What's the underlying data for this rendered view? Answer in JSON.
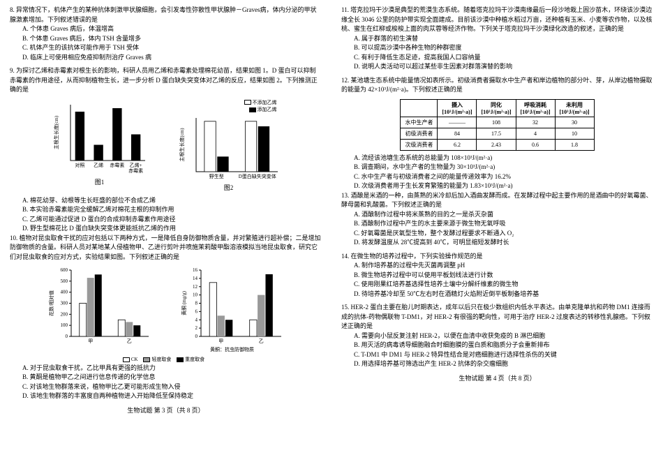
{
  "left": {
    "q8": {
      "stem": "8. 异常情况下，机体产生的某种抗体刺激甲状腺细胞，会引发毒性弥散性甲状腺肿－Graves病，体内分泌的甲状腺激素增加。下列叙述错误的是",
      "opts": [
        "A. 个体患 Graves 病后，体温增高",
        "B. 个体患 Graves 病后，体内 TSH 含量增多",
        "C. 机体产生的该抗体可能作用于 TSH 受体",
        "D. 临床上可使用相应免疫抑制剂治疗 Graves 病"
      ]
    },
    "q9": {
      "stem": "9. 为探讨乙烯和赤霉素对根生长的影响，科研人员用乙烯和赤霉素处理棉花幼苗，结果如图 1。D 蛋白可以抑制赤霉素的作用途径，从而抑制植物生长，进一步分析 D 蛋白缺失突变体对乙烯的反应，结果如图 2。下列推测正确的是",
      "opts": [
        "A. 棉花幼芽、幼根等生长旺盛的部位不合成乙烯",
        "B. 本实验赤霉素能完全缓解乙烯对棉花主根的抑制作用",
        "C. 乙烯可能通过促进 D 蛋白的合成抑制赤霉素作用途径",
        "D. 野生型棉花比 D 蛋白缺失突变体更能抵抗乙烯的作用"
      ]
    },
    "q10": {
      "stem": "10. 植物对昆虫取食干扰的应对包括以下两种方式，一是降低自身防御物质含量，并对繁殖进行超补偿；二是增加防御物质的含量。科研人员对某地某人侵植物甲、乙进行剪叶并喷施茉莉酸甲酯溶液模拟当地昆虫取食，研究它们对昆虫取食的应对方式，实验结果如图。下列叙述正确的是",
      "opts": [
        "A. 对于昆虫取食干扰，乙比甲具有更强的抵抗力",
        "B. 黄酮是植物甲乙之间进行信息传递的化学信息",
        "C. 对该地生物群落来说，植物甲比乙更可能形成生物入侵",
        "D. 该地生物群落的丰富度自两种植物进入开始降低至保持稳定"
      ]
    },
    "chart1": {
      "ylabel": "主根生长度(cm)",
      "xcats": [
        "对照",
        "乙烯",
        "赤霉素",
        "乙烯+\n赤霉素"
      ],
      "vals": [
        2.8,
        0.9,
        3.0,
        1.5
      ],
      "ymax": 3.2,
      "bar_color": "#000",
      "title": "图1"
    },
    "chart2": {
      "ylabel": "主根生长度(cm)",
      "xcats": [
        "野生型",
        "D蛋白缺失突变体"
      ],
      "legend": [
        "不添加乙烯",
        "添加乙烯"
      ],
      "series": [
        [
          3.0,
          3.0
        ],
        [
          0.9,
          2.7
        ]
      ],
      "ymax": 3.2,
      "title": "图2"
    },
    "chart3": {
      "ylabel": "花数/相对值",
      "xcats": [
        "甲",
        "乙"
      ],
      "legend": [
        "CK",
        "轻度取食",
        "重度取食"
      ],
      "series": [
        [
          300,
          150
        ],
        [
          530,
          130
        ],
        [
          560,
          100
        ]
      ],
      "ymax": 600,
      "yticks": [
        0,
        100,
        200,
        300,
        400,
        500,
        600
      ]
    },
    "chart4": {
      "ylabel": "黄酮 (mg/g)",
      "xcats": [
        "甲",
        "乙"
      ],
      "note": "黄酮：抗虫防御物质",
      "series": [
        [
          13,
          4
        ],
        [
          5,
          10
        ],
        [
          4,
          15
        ]
      ],
      "ymax": 16,
      "yticks": [
        0,
        2,
        4,
        6,
        8,
        10,
        12,
        14,
        16
      ]
    },
    "footer": "生物试题  第 3 页（共 8 页）"
  },
  "right": {
    "q11": {
      "stem": "11. 塔克拉玛干沙漠是典型的荒漠生态系统。随着塔克拉玛干沙漠南缘最后一段沙地栽上固沙苗木，环绕该沙漠边缘全长 3046 公里的防护带实现全面建成。目前该沙漠中种植水稻过万亩，还种植有玉米、小麦等农作物，以及核桃、蜜生在红柳或梭梭上面的肉苁蓉等经济作物。下列关于塔克拉玛干沙漠绿化改造的叙述，正确的是",
      "opts": [
        "A. 属于群落的初生演替",
        "B. 可以提高沙漠中各种生物的种群密度",
        "C. 有利于降低生态足迹，提高我国人口容纳量",
        "D. 说明人类活动可以超过某些非生因素对群落演替的影响"
      ]
    },
    "q12": {
      "stem": "12. 某池塘生态系统中能量情况如表所示。初级消费者摄取水中生产者和岸边植物的部分叶、芽，从岸边植物摄取的能量为 42×10³J/(m²·a)。下列叙述正确的是",
      "opts": [
        "A. 流经该池塘生态系统的总能量为 108×10³J/(m²·a)",
        "B. 调查期间，水中生产者的生物量为 30×10³J/(m²·a)",
        "C. 水中生产者与初级消费者之间的能量传递效率为 16.2%",
        "D. 次级消费者用于生长发育繁殖的能量为 1.83×10³J/(m²·a)"
      ]
    },
    "table12": {
      "cols": [
        "",
        "摄入\n[10³J/(m²·a)]",
        "同化\n[10³J/(m²·a)]",
        "呼吸消耗\n[10³J/(m²·a)]",
        "未利用\n[10³J/(m²·a)]"
      ],
      "rows": [
        [
          "水中生产者",
          "———",
          "108",
          "32",
          "30"
        ],
        [
          "初级消费者",
          "84",
          "17.5",
          "4",
          "10"
        ],
        [
          "次级消费者",
          "6.2",
          "2.43",
          "0.6",
          "1.8"
        ]
      ]
    },
    "q13": {
      "stem": "13. 酒酿是米酒的一种，由蒸熟的米冷却后加入酒曲发酵而成。在发酵过程中起主要作用的是酒曲中的好氧霉菌、酵母菌和乳酸菌。下列叙述正确的是",
      "opts": [
        "A. 酒酿制作过程中将米蒸熟的目的之一是杀灭杂菌",
        "B. 酒酿制作过程中产生的水主要来源于微生物无氧呼吸",
        "C. 好氧霉菌是厌氧型生物，整个发酵过程要求不断通入 O₂",
        "D. 将发酵温度从 28℃提高到 40℃，可明显缩短发酵时长"
      ]
    },
    "q14": {
      "stem": "14. 在微生物的培养过程中，下列实验操作规范的是",
      "opts": [
        "A. 制作培养基的过程中先灭菌再调整 pH",
        "B. 微生物培养过程中可以使用平板划线法进行计数",
        "C. 使用刚果红培养基选择性培养土壤中分解纤维素的微生物",
        "D. 待培养基冷却至 50℃左右时在酒精灯火焰附近倒平板制备培养基"
      ]
    },
    "q15": {
      "stem": "15. HER-2 蛋白主要在胎儿时期表达，成年以后只在极少数组织内低水平表达。由单克隆单抗和药物 DM1 连接而成的抗体-药物偶联物 T-DM1，对 HER-2 有很强的靶向性，可用于治疗 HER-2 过度表达的转移性乳腺癌。下列叙述正确的是",
      "opts": [
        "A. 需要向小鼠反复注射 HER-2，以便在血清中收获免疫的 B 淋巴细胞",
        "B. 用灭活的病毒诱导细胞融合时细胞膜的蛋白质和脂质分子会重新排布",
        "C. T-DM1 中 DM1 与 HER-2 特异性结合是对癌细胞进行选择性杀伤的关键",
        "D. 用选择培养基可筛选出产生 HER-2 抗体的杂交瘤细胞"
      ]
    },
    "footer": "生物试题  第 4 页（共 8 页）"
  }
}
